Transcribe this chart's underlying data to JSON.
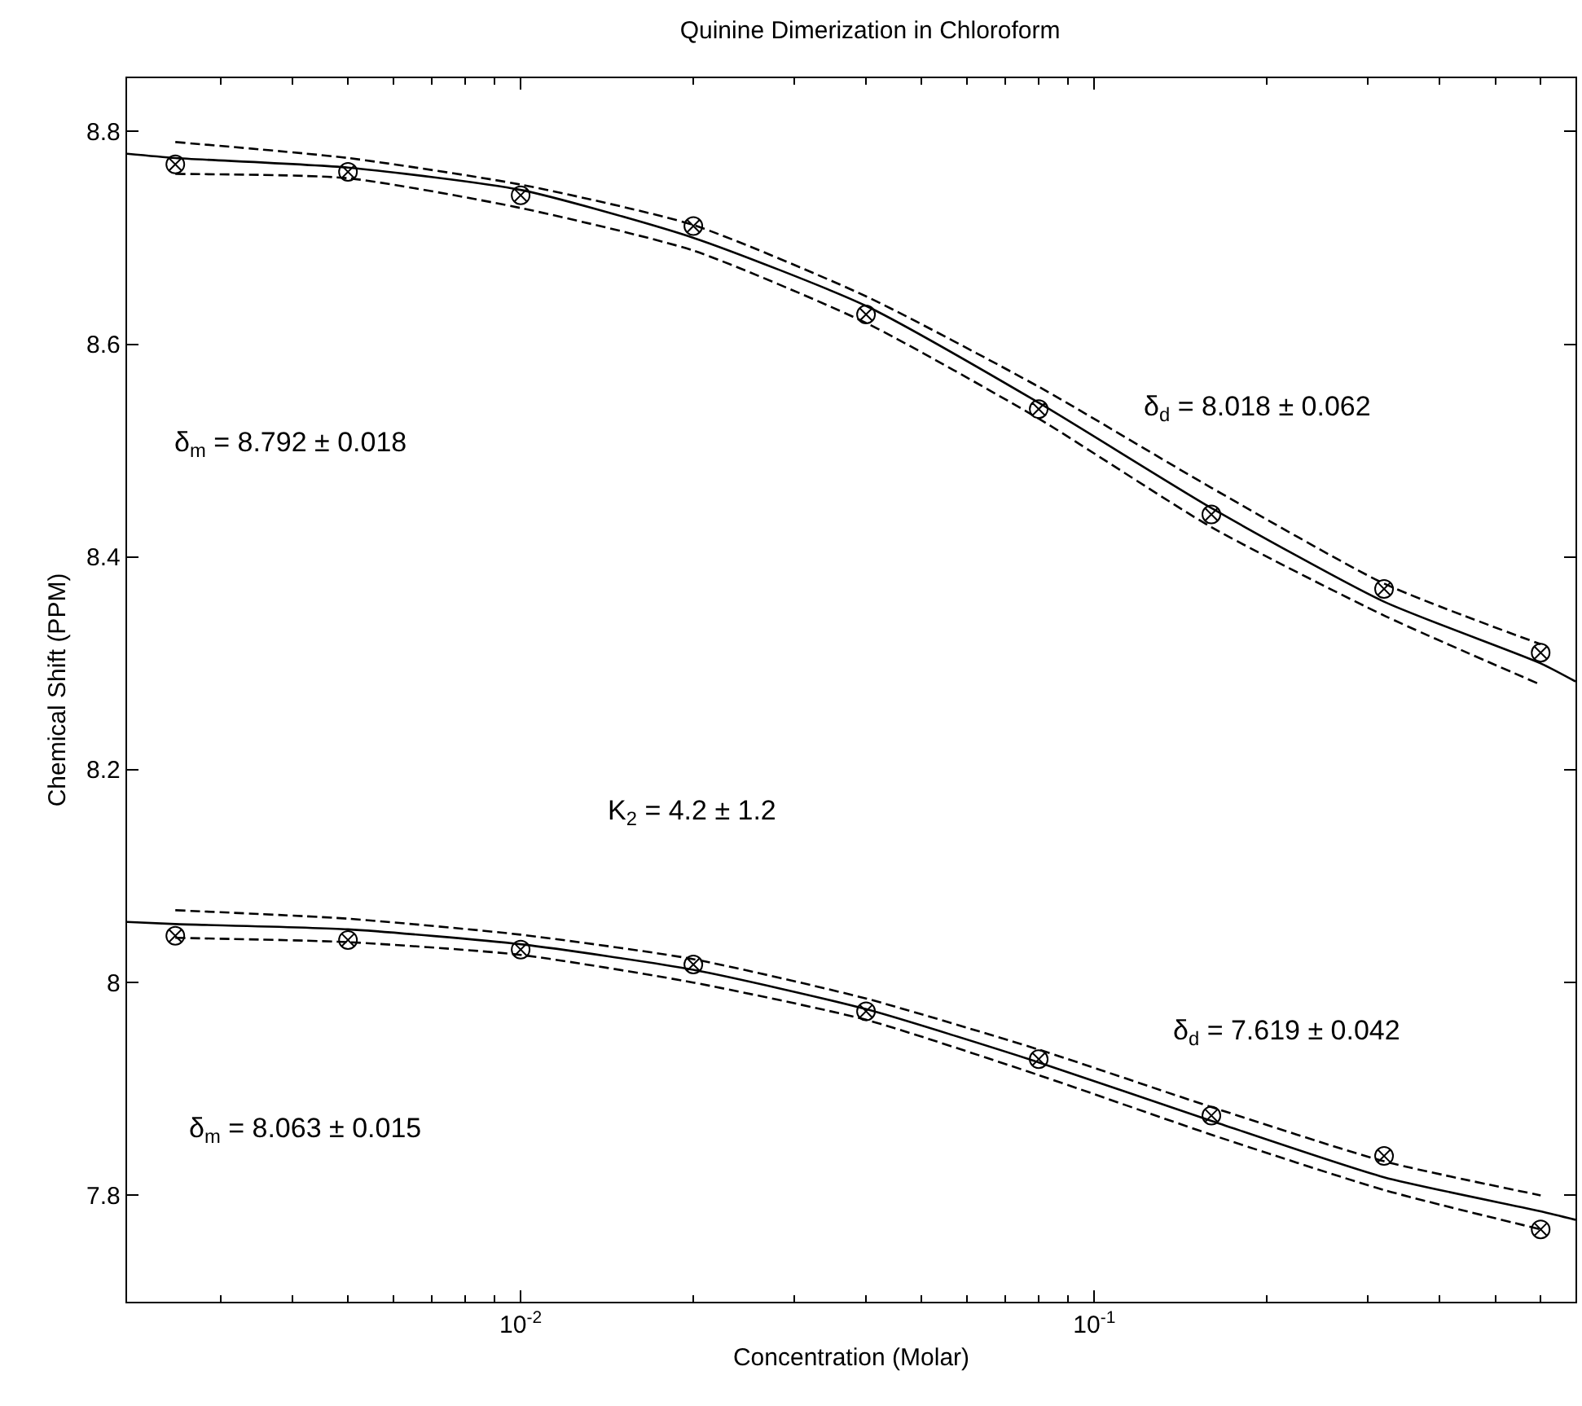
{
  "chart_data": {
    "type": "scatter",
    "title": "Quinine Dimerization in Chloroform",
    "xlabel": "Concentration (Molar)",
    "ylabel": "Chemical Shift (PPM)",
    "log": "x",
    "xlim": [
      0.00206,
      0.69
    ],
    "ylim": [
      7.7,
      8.85
    ],
    "xticks": [
      {
        "value": 0.01,
        "label": "10$^{-2}$"
      },
      {
        "value": 0.1,
        "label": "10$^{-1}$"
      }
    ],
    "yticks": [
      7.8,
      8,
      8.2,
      8.4,
      8.6,
      8.8
    ],
    "series": [
      {
        "type": "line",
        "line_style": "solid",
        "marker": "none",
        "color": "#000000",
        "x": [
          0.00206,
          0.0025,
          0.005,
          0.01,
          0.02,
          0.04,
          0.08,
          0.16,
          0.32,
          0.6,
          0.69
        ],
        "values": [
          8.779,
          8.775,
          8.766,
          8.745,
          8.7,
          8.636,
          8.545,
          8.446,
          8.358,
          8.3,
          8.283
        ]
      },
      {
        "type": "line",
        "line_style": "dashed",
        "marker": "none",
        "color": "#000000",
        "x": [
          0.0025,
          0.005,
          0.01,
          0.02,
          0.04,
          0.08,
          0.16,
          0.32,
          0.6
        ],
        "values": [
          8.79,
          8.775,
          8.75,
          8.712,
          8.645,
          8.56,
          8.465,
          8.375,
          8.318
        ]
      },
      {
        "type": "line",
        "line_style": "dashed",
        "marker": "none",
        "color": "#000000",
        "x": [
          0.0025,
          0.005,
          0.01,
          0.02,
          0.04,
          0.08,
          0.16,
          0.32,
          0.6
        ],
        "values": [
          8.76,
          8.756,
          8.728,
          8.688,
          8.62,
          8.53,
          8.428,
          8.345,
          8.28
        ]
      },
      {
        "type": "line",
        "line_style": "solid",
        "marker": "none",
        "color": "#000000",
        "x": [
          0.00206,
          0.0025,
          0.005,
          0.01,
          0.02,
          0.04,
          0.08,
          0.16,
          0.32,
          0.6,
          0.69
        ],
        "values": [
          8.057,
          8.055,
          8.05,
          8.036,
          8.012,
          7.975,
          7.925,
          7.87,
          7.817,
          7.785,
          7.777
        ]
      },
      {
        "type": "line",
        "line_style": "dashed",
        "marker": "none",
        "color": "#000000",
        "x": [
          0.0025,
          0.005,
          0.01,
          0.02,
          0.04,
          0.08,
          0.16,
          0.32,
          0.6
        ],
        "values": [
          8.068,
          8.06,
          8.045,
          8.022,
          7.985,
          7.937,
          7.883,
          7.832,
          7.8
        ]
      },
      {
        "type": "line",
        "line_style": "dashed",
        "marker": "none",
        "color": "#000000",
        "x": [
          0.0025,
          0.005,
          0.01,
          0.02,
          0.04,
          0.08,
          0.16,
          0.32,
          0.6
        ],
        "values": [
          8.042,
          8.038,
          8.026,
          8.0,
          7.965,
          7.913,
          7.857,
          7.805,
          7.768
        ]
      },
      {
        "marker": "cross",
        "color": "#000000",
        "x": [
          0.0025,
          0.005,
          0.01,
          0.02,
          0.04,
          0.08,
          0.16,
          0.32,
          0.6
        ],
        "values": [
          8.769,
          8.762,
          8.74,
          8.711,
          8.628,
          8.539,
          8.44,
          8.37,
          8.31
        ]
      },
      {
        "marker": "cross",
        "color": "#000000",
        "x": [
          0.0025,
          0.005,
          0.01,
          0.02,
          0.04,
          0.08,
          0.16,
          0.32,
          0.6
        ],
        "values": [
          8.044,
          8.04,
          8.031,
          8.017,
          7.973,
          7.928,
          7.875,
          7.837,
          7.768
        ]
      }
    ],
    "annotations": [
      "δ$_{m}$ = 8.792 ± 0.018",
      "δ$_{d}$ = 8.018 ± 0.062",
      "K$_{2}$ = 4.2 ± 1.2",
      "δ$_{m}$ = 8.063 ± 0.015",
      "δ$_{d}$ = 7.619 ± 0.042"
    ]
  }
}
